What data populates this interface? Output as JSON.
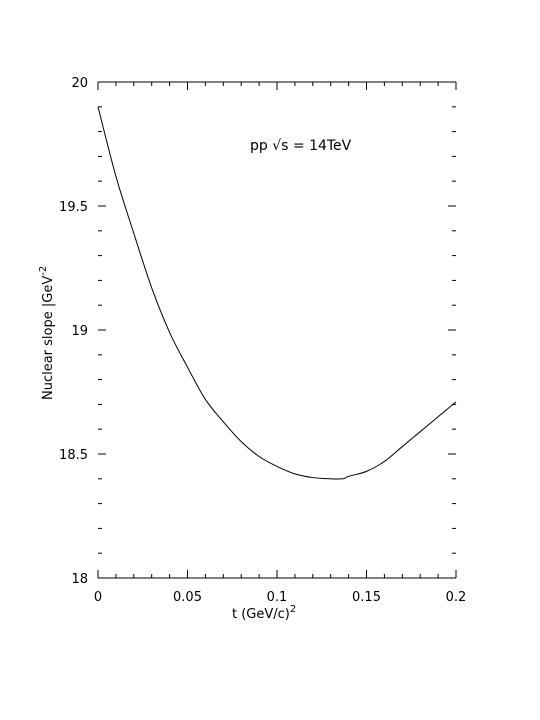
{
  "chart_data": {
    "type": "line",
    "xlabel": "t  (GeV/c)",
    "xlabel_sup": "2",
    "ylabel": "Nuclear slope |GeV",
    "ylabel_sup": "-2",
    "annotation": "pp  √s  =  14TeV",
    "xlim": [
      0,
      0.2
    ],
    "ylim": [
      18,
      20
    ],
    "x_ticks": [
      0,
      0.05,
      0.1,
      0.15,
      0.2
    ],
    "x_tick_labels": [
      "0",
      "0.05",
      "0.1",
      "0.15",
      "0.2"
    ],
    "y_ticks": [
      18,
      18.5,
      19,
      19.5,
      20
    ],
    "y_tick_labels": [
      "18",
      "18.5",
      "19",
      "19.5",
      "20"
    ],
    "grid": false,
    "series": [
      {
        "x": [
          0,
          0.01,
          0.02,
          0.03,
          0.04,
          0.05,
          0.06,
          0.07,
          0.08,
          0.09,
          0.1,
          0.11,
          0.12,
          0.13,
          0.137,
          0.14,
          0.15,
          0.16,
          0.17,
          0.18,
          0.19,
          0.2
        ],
        "y": [
          19.9,
          19.62,
          19.39,
          19.17,
          18.99,
          18.85,
          18.72,
          18.63,
          18.55,
          18.49,
          18.45,
          18.42,
          18.405,
          18.4,
          18.4,
          18.41,
          18.43,
          18.47,
          18.53,
          18.59,
          18.65,
          18.71
        ]
      }
    ]
  }
}
